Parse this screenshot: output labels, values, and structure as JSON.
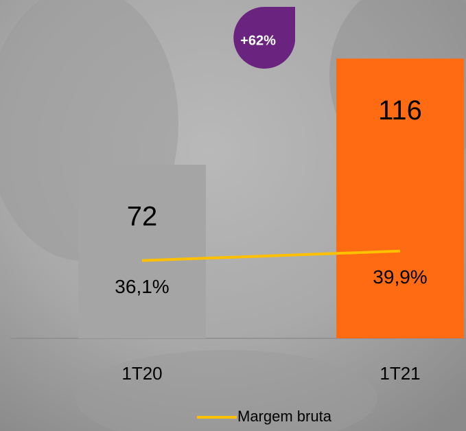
{
  "chart_data": {
    "type": "bar",
    "annotation": "+62%",
    "categories": [
      "1T20",
      "1T21"
    ],
    "series": [
      {
        "type": "bar",
        "colors": [
          "#a5a5a5",
          "#ff6b13"
        ],
        "values": [
          72,
          116
        ]
      },
      {
        "type": "line",
        "name": "Margem bruta",
        "color": "#ffc000",
        "axis": "y2",
        "values": [
          36.1,
          39.9
        ],
        "value_labels": [
          "36,1%",
          "39,9%"
        ]
      }
    ],
    "ylim": [
      0,
      140
    ],
    "y2lim": [
      5,
      140
    ],
    "legend": "bottom"
  }
}
